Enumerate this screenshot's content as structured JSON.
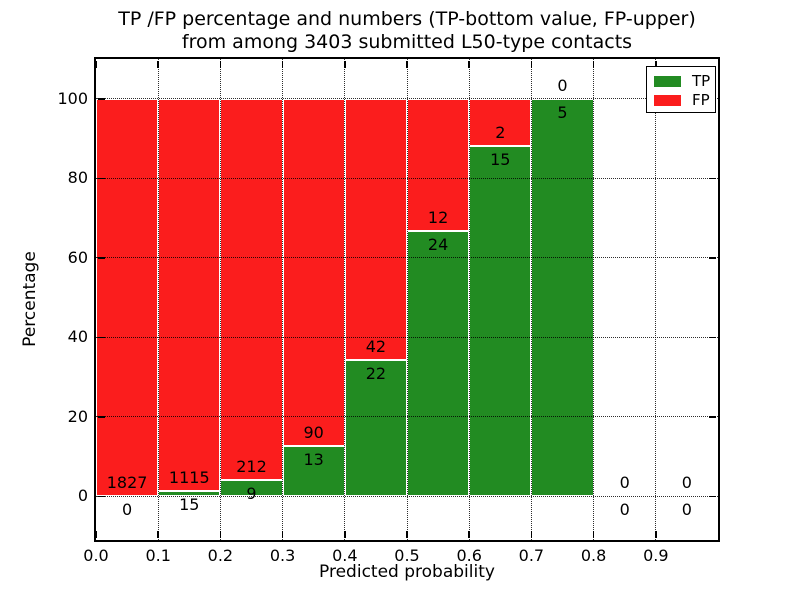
{
  "figure": {
    "title_line1": "TP /FP percentage and numbers (TP-bottom value, FP-upper)",
    "title_line2": "from among 3403 submitted L50-type contacts"
  },
  "chart_data": {
    "type": "bar",
    "stacked": true,
    "title": "TP /FP percentage and numbers (TP-bottom value, FP-upper)\nfrom among 3403 submitted L50-type contacts",
    "xlabel": "Predicted probability",
    "ylabel": "Percentage",
    "xlim": [
      0.0,
      1.0
    ],
    "ylim": [
      -11,
      110
    ],
    "xticks": [
      "0.0",
      "0.1",
      "0.2",
      "0.3",
      "0.4",
      "0.5",
      "0.6",
      "0.7",
      "0.8",
      "0.9"
    ],
    "yticks": [
      0,
      20,
      40,
      60,
      80,
      100
    ],
    "grid": true,
    "grid_style": "dotted",
    "grid_above_bars": true,
    "legend_position": "upper right",
    "bin_width": 0.1,
    "bin_starts": [
      0.0,
      0.1,
      0.2,
      0.3,
      0.4,
      0.5,
      0.6,
      0.7,
      0.8,
      0.9
    ],
    "bar_heights_unit": "percent of bin total (TP+FP stacked to 100%)",
    "series": [
      {
        "name": "TP",
        "color": "#228b22",
        "counts": [
          0,
          15,
          9,
          13,
          22,
          24,
          15,
          5,
          0,
          0
        ]
      },
      {
        "name": "FP",
        "color": "#fb1d1d",
        "counts": [
          1827,
          1115,
          212,
          90,
          42,
          12,
          2,
          0,
          0,
          0
        ]
      }
    ],
    "label_rule": "FP count printed just above TP/FP boundary, TP count just below it"
  },
  "legend": {
    "items": [
      {
        "label": "TP",
        "color": "#228b22"
      },
      {
        "label": "FP",
        "color": "#fb1d1d"
      }
    ]
  }
}
